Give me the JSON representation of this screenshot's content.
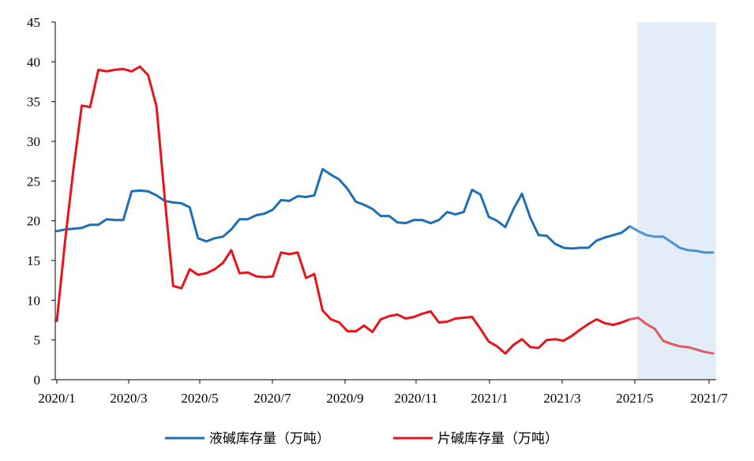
{
  "chart_data": {
    "type": "line",
    "title": "",
    "xlabel": "",
    "ylabel": "",
    "ylim": [
      0,
      45
    ],
    "yticks": [
      0,
      5,
      10,
      15,
      20,
      25,
      30,
      35,
      40,
      45
    ],
    "xlim": [
      "2020/1",
      "2021/7"
    ],
    "xticks": [
      "2020/1",
      "2020/3",
      "2020/5",
      "2020/7",
      "2020/9",
      "2020/11",
      "2021/1",
      "2021/3",
      "2021/5",
      "2021/7"
    ],
    "grid": false,
    "legend": "bottom",
    "forecast_shading": {
      "from": "2021/5",
      "color": "#e3edf7"
    },
    "series": [
      {
        "name": "液碱库存量（万吨）",
        "color": "#1f6fb5",
        "forecast_color": "#4d94cf",
        "points": [
          [
            "2020/1",
            18.7
          ],
          [
            "2020/1",
            18.9
          ],
          [
            "2020/1",
            19.0
          ],
          [
            "2020/1",
            19.1
          ],
          [
            "2020/2",
            19.5
          ],
          [
            "2020/2",
            19.5
          ],
          [
            "2020/2",
            20.2
          ],
          [
            "2020/2",
            20.1
          ],
          [
            "2020/3",
            20.1
          ],
          [
            "2020/3",
            23.7
          ],
          [
            "2020/3",
            23.8
          ],
          [
            "2020/3",
            23.7
          ],
          [
            "2020/4",
            23.2
          ],
          [
            "2020/4",
            22.5
          ],
          [
            "2020/4",
            22.3
          ],
          [
            "2020/4",
            22.2
          ],
          [
            "2020/5",
            21.7
          ],
          [
            "2020/5",
            17.8
          ],
          [
            "2020/5",
            17.4
          ],
          [
            "2020/5",
            17.8
          ],
          [
            "2020/6",
            18.0
          ],
          [
            "2020/6",
            18.9
          ],
          [
            "2020/6",
            20.2
          ],
          [
            "2020/6",
            20.2
          ],
          [
            "2020/7",
            20.7
          ],
          [
            "2020/7",
            20.9
          ],
          [
            "2020/7",
            21.4
          ],
          [
            "2020/7",
            22.6
          ],
          [
            "2020/8",
            22.5
          ],
          [
            "2020/8",
            23.1
          ],
          [
            "2020/8",
            23.0
          ],
          [
            "2020/8",
            23.2
          ],
          [
            "2020/8",
            26.5
          ],
          [
            "2020/9",
            25.8
          ],
          [
            "2020/9",
            25.2
          ],
          [
            "2020/9",
            24.0
          ],
          [
            "2020/9",
            22.4
          ],
          [
            "2020/10",
            22.0
          ],
          [
            "2020/10",
            21.5
          ],
          [
            "2020/10",
            20.6
          ],
          [
            "2020/10",
            20.6
          ],
          [
            "2020/11",
            19.8
          ],
          [
            "2020/11",
            19.7
          ],
          [
            "2020/11",
            20.1
          ],
          [
            "2020/11",
            20.1
          ],
          [
            "2020/12",
            19.7
          ],
          [
            "2020/12",
            20.1
          ],
          [
            "2020/12",
            21.1
          ],
          [
            "2020/12",
            20.8
          ],
          [
            "2021/1",
            21.1
          ],
          [
            "2021/1",
            23.9
          ],
          [
            "2021/1",
            23.3
          ],
          [
            "2021/1",
            20.5
          ],
          [
            "2021/2",
            20.0
          ],
          [
            "2021/2",
            19.2
          ],
          [
            "2021/2",
            21.5
          ],
          [
            "2021/2",
            23.4
          ],
          [
            "2021/3",
            20.4
          ],
          [
            "2021/3",
            18.2
          ],
          [
            "2021/3",
            18.1
          ],
          [
            "2021/3",
            17.1
          ],
          [
            "2021/4",
            16.6
          ],
          [
            "2021/4",
            16.5
          ],
          [
            "2021/4",
            16.6
          ],
          [
            "2021/4",
            16.6
          ],
          [
            "2021/5",
            17.5
          ],
          [
            "2021/5",
            17.9
          ],
          [
            "2021/5",
            18.2
          ],
          [
            "2021/5",
            18.5
          ],
          [
            "2021/5",
            19.3
          ],
          [
            "2021/5",
            18.7
          ],
          [
            "2021/6",
            18.2
          ],
          [
            "2021/6",
            18.0
          ],
          [
            "2021/6",
            18.0
          ],
          [
            "2021/6",
            17.3
          ],
          [
            "2021/7",
            16.6
          ],
          [
            "2021/7",
            16.3
          ],
          [
            "2021/7",
            16.2
          ],
          [
            "2021/7",
            16.0
          ],
          [
            "2021/7",
            16.0
          ]
        ]
      },
      {
        "name": "片碱库存量（万吨）",
        "color": "#e8141b",
        "forecast_color": "#e05a63",
        "points": [
          [
            "2020/1",
            7.4
          ],
          [
            "2020/1",
            17.5
          ],
          [
            "2020/1",
            26.5
          ],
          [
            "2020/1",
            34.5
          ],
          [
            "2020/2",
            34.3
          ],
          [
            "2020/2",
            39.0
          ],
          [
            "2020/2",
            38.8
          ],
          [
            "2020/2",
            39.0
          ],
          [
            "2020/3",
            39.1
          ],
          [
            "2020/3",
            38.8
          ],
          [
            "2020/3",
            39.4
          ],
          [
            "2020/3",
            38.3
          ],
          [
            "2020/4",
            34.4
          ],
          [
            "2020/4",
            22.8
          ],
          [
            "2020/4",
            11.8
          ],
          [
            "2020/4",
            11.5
          ],
          [
            "2020/5",
            13.9
          ],
          [
            "2020/5",
            13.2
          ],
          [
            "2020/5",
            13.4
          ],
          [
            "2020/5",
            13.9
          ],
          [
            "2020/6",
            14.7
          ],
          [
            "2020/6",
            16.3
          ],
          [
            "2020/6",
            13.4
          ],
          [
            "2020/6",
            13.5
          ],
          [
            "2020/7",
            13.0
          ],
          [
            "2020/7",
            12.9
          ],
          [
            "2020/7",
            13.0
          ],
          [
            "2020/7",
            16.0
          ],
          [
            "2020/8",
            15.8
          ],
          [
            "2020/8",
            16.0
          ],
          [
            "2020/8",
            12.8
          ],
          [
            "2020/8",
            13.3
          ],
          [
            "2020/8",
            8.7
          ],
          [
            "2020/9",
            7.6
          ],
          [
            "2020/9",
            7.2
          ],
          [
            "2020/9",
            6.1
          ],
          [
            "2020/9",
            6.1
          ],
          [
            "2020/10",
            6.8
          ],
          [
            "2020/10",
            6.0
          ],
          [
            "2020/10",
            7.6
          ],
          [
            "2020/10",
            8.0
          ],
          [
            "2020/11",
            8.2
          ],
          [
            "2020/11",
            7.7
          ],
          [
            "2020/11",
            7.9
          ],
          [
            "2020/11",
            8.3
          ],
          [
            "2020/12",
            8.6
          ],
          [
            "2020/12",
            7.2
          ],
          [
            "2020/12",
            7.3
          ],
          [
            "2020/12",
            7.7
          ],
          [
            "2021/1",
            7.8
          ],
          [
            "2021/1",
            7.9
          ],
          [
            "2021/1",
            6.4
          ],
          [
            "2021/1",
            4.8
          ],
          [
            "2021/2",
            4.2
          ],
          [
            "2021/2",
            3.3
          ],
          [
            "2021/2",
            4.4
          ],
          [
            "2021/2",
            5.1
          ],
          [
            "2021/3",
            4.1
          ],
          [
            "2021/3",
            4.0
          ],
          [
            "2021/3",
            5.0
          ],
          [
            "2021/3",
            5.1
          ],
          [
            "2021/4",
            4.9
          ],
          [
            "2021/4",
            5.5
          ],
          [
            "2021/4",
            6.3
          ],
          [
            "2021/4",
            7.0
          ],
          [
            "2021/5",
            7.6
          ],
          [
            "2021/5",
            7.1
          ],
          [
            "2021/5",
            6.9
          ],
          [
            "2021/5",
            7.2
          ],
          [
            "2021/5",
            7.6
          ],
          [
            "2021/5",
            7.8
          ],
          [
            "2021/6",
            7.0
          ],
          [
            "2021/6",
            6.4
          ],
          [
            "2021/6",
            4.9
          ],
          [
            "2021/6",
            4.5
          ],
          [
            "2021/7",
            4.2
          ],
          [
            "2021/7",
            4.1
          ],
          [
            "2021/7",
            3.8
          ],
          [
            "2021/7",
            3.5
          ],
          [
            "2021/7",
            3.3
          ]
        ]
      }
    ]
  }
}
